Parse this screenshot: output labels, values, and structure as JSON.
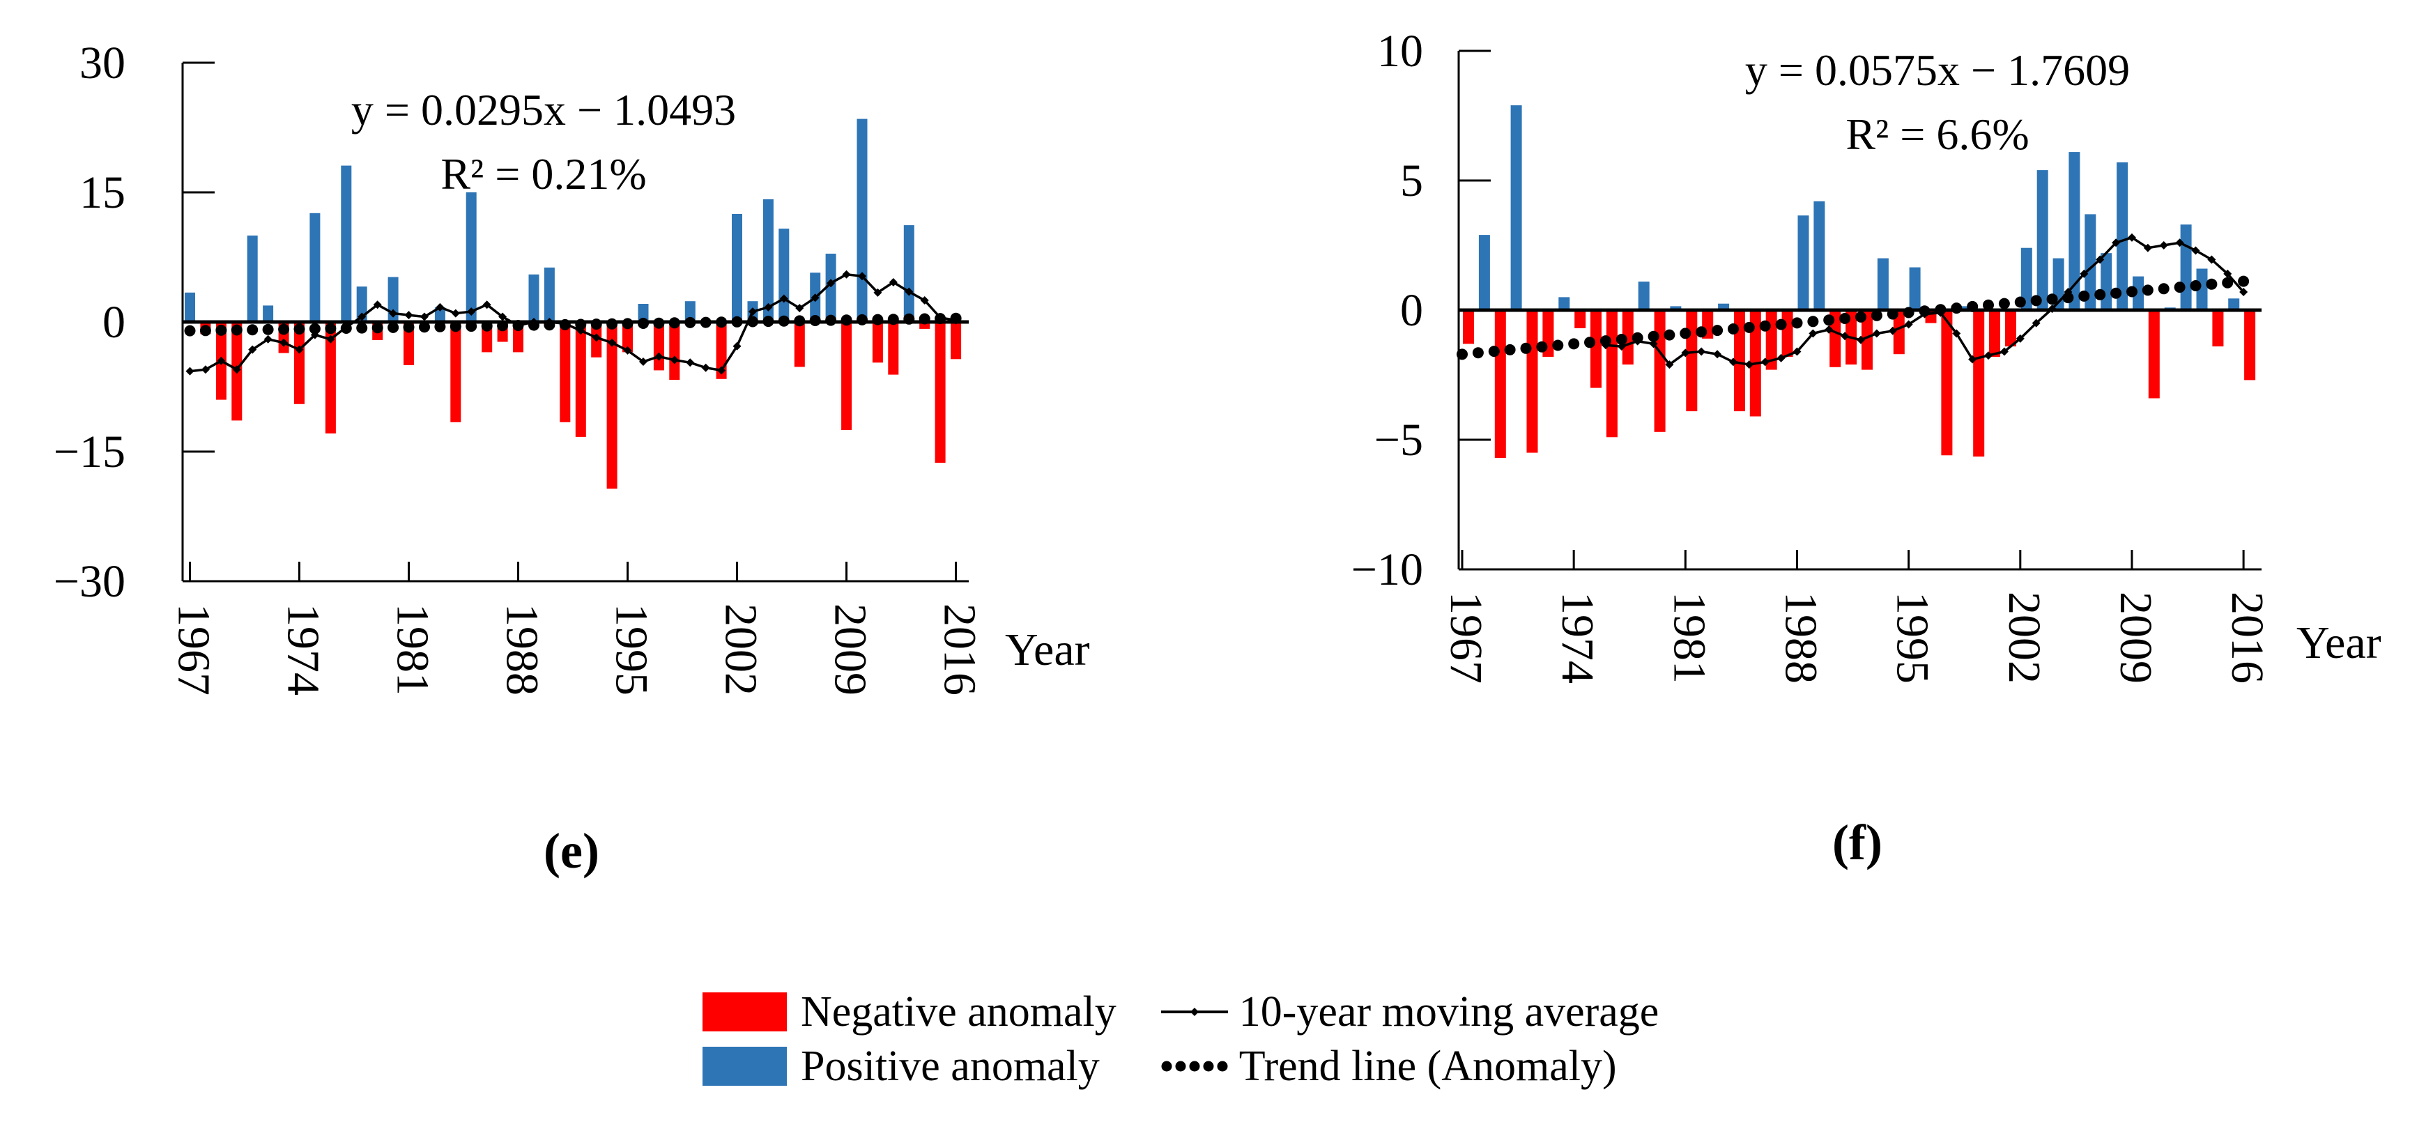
{
  "figure": {
    "background": "#ffffff"
  },
  "colors": {
    "negative_bar": "#ff0000",
    "positive_bar": "#2e75b6",
    "line": "#000000",
    "text": "#000000"
  },
  "legend": {
    "negative_label": "Negative anomaly",
    "positive_label": "Positive anomaly",
    "moving_avg_label": "10-year moving average",
    "trend_label": "Trend line (Anomaly)"
  },
  "chart_data": [
    {
      "id": "e",
      "type": "bar",
      "caption": "(e)",
      "title_line1": "y = 0.0295x − 1.0493",
      "title_line2": "R² = 0.21%",
      "xlabel": "Year",
      "ylim": [
        -30,
        30
      ],
      "yticks": [
        30,
        15,
        0,
        -15,
        -30
      ],
      "ytick_labels": [
        "30",
        "15",
        "0",
        "−15",
        "−30"
      ],
      "xticks": [
        1967,
        1974,
        1981,
        1988,
        1995,
        2002,
        2009,
        2016
      ],
      "trend": {
        "slope": 0.0295,
        "intercept": -1.0493
      },
      "legend_position": "none",
      "grid": false,
      "years": [
        1967,
        1968,
        1969,
        1970,
        1971,
        1972,
        1973,
        1974,
        1975,
        1976,
        1977,
        1978,
        1979,
        1980,
        1981,
        1982,
        1983,
        1984,
        1985,
        1986,
        1987,
        1988,
        1989,
        1990,
        1991,
        1992,
        1993,
        1994,
        1995,
        1996,
        1997,
        1998,
        1999,
        2000,
        2001,
        2002,
        2003,
        2004,
        2005,
        2006,
        2007,
        2008,
        2009,
        2010,
        2011,
        2012,
        2013,
        2014,
        2015,
        2016
      ],
      "series": [
        {
          "name": "Anomaly",
          "values": [
            3.4,
            -1.4,
            -9.0,
            -11.4,
            10.0,
            1.9,
            -3.6,
            -9.5,
            12.6,
            -12.9,
            18.1,
            4.1,
            -2.1,
            5.2,
            -5.0,
            0,
            1.7,
            -11.6,
            15.0,
            -3.5,
            -2.3,
            -3.5,
            5.5,
            6.3,
            -11.6,
            -13.3,
            -4.1,
            -19.3,
            -3.5,
            2.1,
            -5.6,
            -6.7,
            2.4,
            0,
            -6.6,
            12.5,
            2.4,
            14.2,
            10.8,
            -5.2,
            5.7,
            7.9,
            -12.5,
            23.5,
            -4.7,
            -6.1,
            11.2,
            -0.8,
            -16.3,
            -4.3
          ]
        },
        {
          "name": "10-year moving average",
          "values": [
            -5.7,
            -5.5,
            -4.5,
            -5.5,
            -3.2,
            -2.0,
            -2.4,
            -3.2,
            -1.5,
            -2.0,
            -0.6,
            0.6,
            2.0,
            1.0,
            0.8,
            0.6,
            1.7,
            1.0,
            1.2,
            2.0,
            0.6,
            -0.4,
            0.0,
            0.0,
            -0.2,
            -1.0,
            -1.8,
            -2.4,
            -3.3,
            -4.6,
            -4.0,
            -4.4,
            -4.7,
            -5.3,
            -5.6,
            -2.8,
            1.2,
            1.7,
            2.7,
            1.6,
            2.8,
            4.5,
            5.5,
            5.3,
            3.4,
            4.6,
            3.5,
            2.5,
            0.5,
            0.2
          ]
        }
      ]
    },
    {
      "id": "f",
      "type": "bar",
      "caption": "(f)",
      "title_line1": "y = 0.0575x − 1.7609",
      "title_line2": "R² = 6.6%",
      "xlabel": "Year",
      "ylim": [
        -10,
        10
      ],
      "yticks": [
        10,
        5,
        0,
        -5,
        -10
      ],
      "ytick_labels": [
        "10",
        "5",
        "0",
        "−5",
        "−10"
      ],
      "xticks": [
        1967,
        1974,
        1981,
        1988,
        1995,
        2002,
        2009,
        2016
      ],
      "trend": {
        "slope": 0.0575,
        "intercept": -1.7609
      },
      "legend_position": "none",
      "grid": false,
      "years": [
        1967,
        1968,
        1969,
        1970,
        1971,
        1972,
        1973,
        1974,
        1975,
        1976,
        1977,
        1978,
        1979,
        1980,
        1981,
        1982,
        1983,
        1984,
        1985,
        1986,
        1987,
        1988,
        1989,
        1990,
        1991,
        1992,
        1993,
        1994,
        1995,
        1996,
        1997,
        1998,
        1999,
        2000,
        2001,
        2002,
        2003,
        2004,
        2005,
        2006,
        2007,
        2008,
        2009,
        2010,
        2011,
        2012,
        2013,
        2014,
        2015,
        2016
      ],
      "series": [
        {
          "name": "Anomaly",
          "values": [
            -1.3,
            2.9,
            -5.7,
            7.9,
            -5.5,
            -1.8,
            0.5,
            -0.7,
            -3.0,
            -4.9,
            -2.1,
            1.1,
            -4.7,
            0.15,
            -3.9,
            -1.1,
            0.25,
            -3.9,
            -4.1,
            -2.3,
            -1.8,
            3.65,
            4.2,
            -2.2,
            -2.1,
            -2.3,
            2.0,
            -1.7,
            1.65,
            -0.5,
            -5.6,
            0.15,
            -5.65,
            -1.8,
            -1.4,
            2.4,
            5.4,
            2.0,
            6.1,
            3.7,
            2.2,
            5.7,
            1.3,
            -3.4,
            0.1,
            3.3,
            1.6,
            -1.4,
            0.45,
            -2.7
          ]
        },
        {
          "name": "10-year moving average",
          "values": [
            null,
            null,
            null,
            null,
            null,
            null,
            null,
            null,
            null,
            -1.35,
            -1.4,
            -1.2,
            -1.3,
            -2.1,
            -1.65,
            -1.6,
            -1.7,
            -2.0,
            -2.1,
            -2.0,
            -1.85,
            -1.6,
            -0.9,
            -0.75,
            -1.0,
            -1.15,
            -0.9,
            -0.8,
            -0.55,
            -0.15,
            -0.1,
            -0.9,
            -1.9,
            -1.75,
            -1.6,
            -1.1,
            -0.5,
            0.05,
            0.7,
            1.4,
            1.95,
            2.6,
            2.8,
            2.4,
            2.5,
            2.6,
            2.3,
            1.95,
            1.4,
            0.7
          ]
        }
      ]
    }
  ]
}
